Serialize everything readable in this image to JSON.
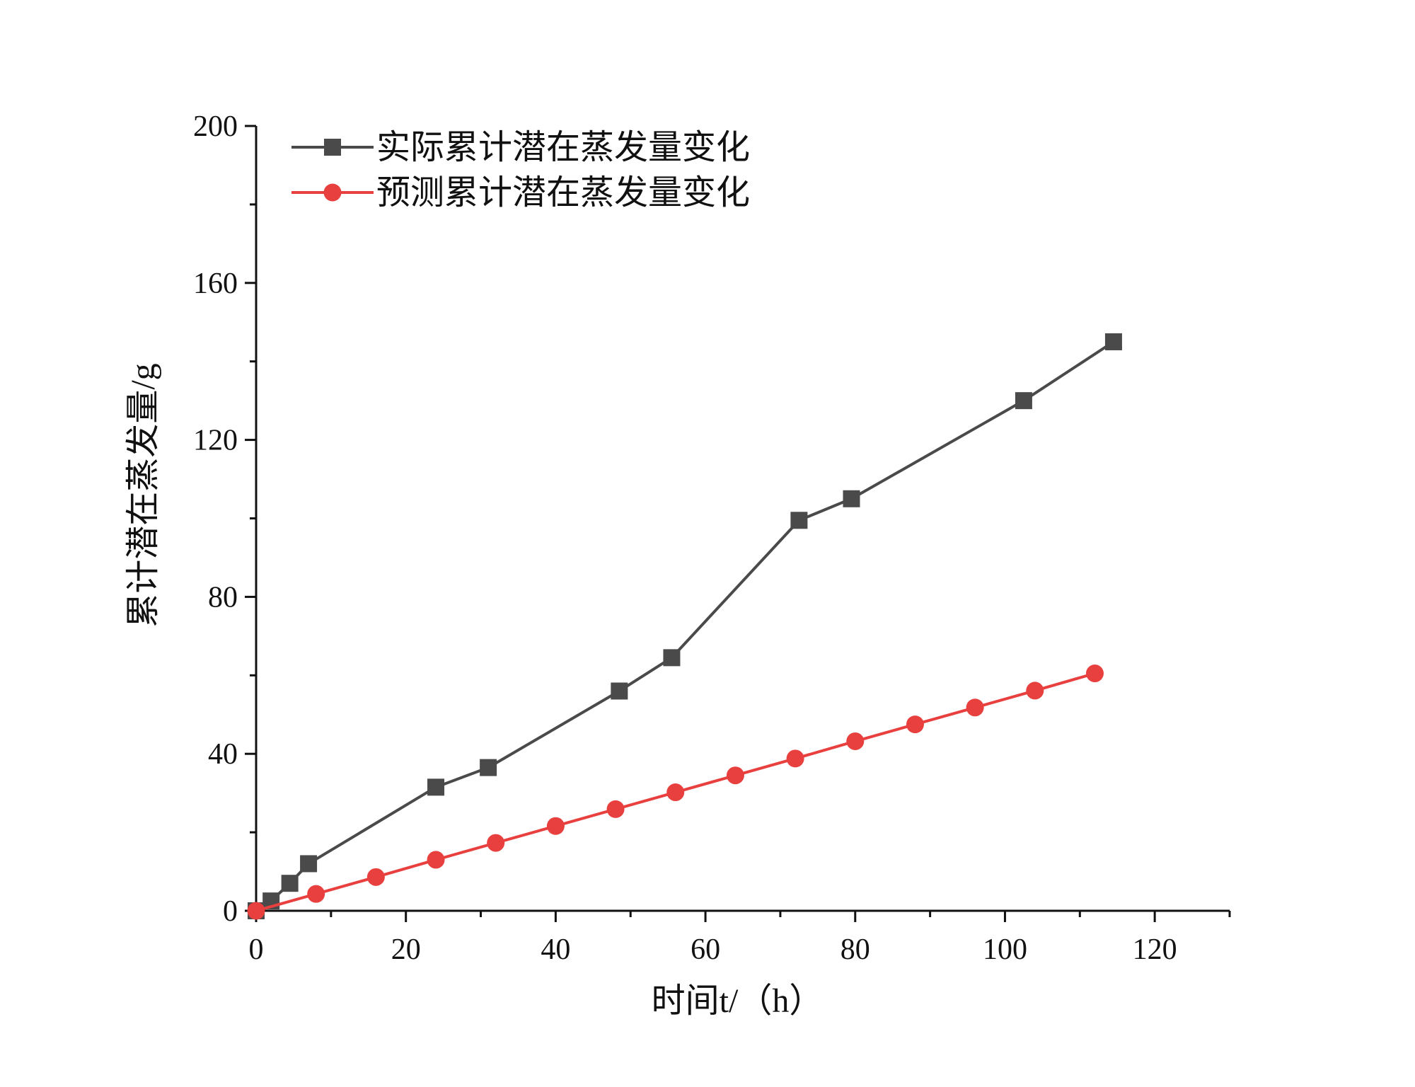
{
  "chart_data": {
    "type": "line",
    "title": "",
    "xlabel": "时间t/（h）",
    "ylabel": "累计潜在蒸发量/g",
    "xlim": [
      0,
      130
    ],
    "ylim": [
      0,
      200
    ],
    "x_ticks": [
      "0",
      "20",
      "40",
      "60",
      "80",
      "100",
      "120"
    ],
    "y_ticks": [
      "0",
      "40",
      "80",
      "120",
      "160",
      "200"
    ],
    "grid": false,
    "legend_position": "top-left",
    "series": [
      {
        "name": "实际累计潜在蒸发量变化",
        "color": "#4a4a4a",
        "marker": "square",
        "x": [
          0,
          2,
          4.5,
          7,
          24,
          31,
          48.5,
          55.5,
          72.5,
          79.5,
          102.5,
          114.5
        ],
        "y": [
          0,
          2.5,
          7,
          12,
          31.5,
          36.5,
          56,
          64.5,
          99.5,
          105,
          130,
          145
        ]
      },
      {
        "name": "预测累计潜在蒸发量变化",
        "color": "#e8403f",
        "marker": "circle",
        "x": [
          0,
          8,
          16,
          24,
          32,
          40,
          48,
          56,
          64,
          72,
          80,
          88,
          96,
          104,
          112
        ],
        "y": [
          0,
          4.3,
          8.6,
          13,
          17.3,
          21.6,
          25.9,
          30.2,
          34.5,
          38.8,
          43.2,
          47.5,
          51.8,
          56.1,
          60.5
        ]
      }
    ]
  }
}
